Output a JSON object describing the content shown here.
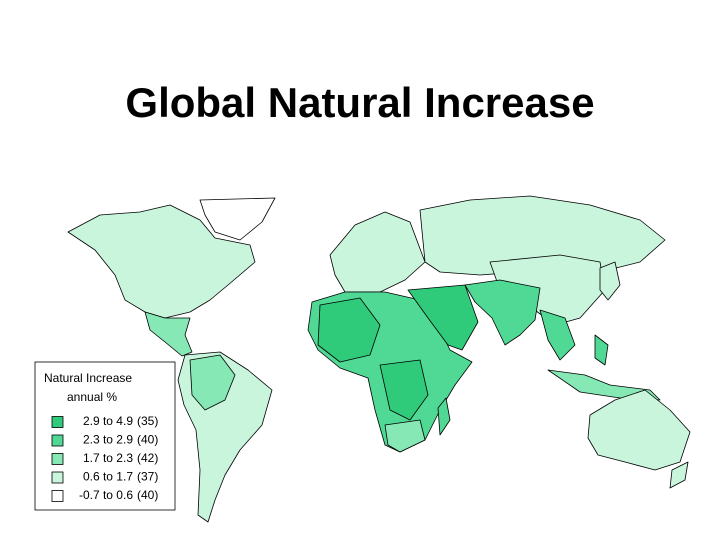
{
  "title": "Global Natural Increase",
  "legend": {
    "title": "Natural Increase",
    "subtitle": "annual %",
    "items": [
      {
        "range": "2.9 to 4.9",
        "count": "(35)",
        "color": "#2fcb7a"
      },
      {
        "range": "2.3 to 2.9",
        "count": "(40)",
        "color": "#4fd994"
      },
      {
        "range": "1.7 to 2.3",
        "count": "(42)",
        "color": "#86e8b5"
      },
      {
        "range": "0.6 to 1.7",
        "count": "(37)",
        "color": "#c8f5dc"
      },
      {
        "range": "-0.7 to 0.6",
        "count": "(40)",
        "color": "#ffffff"
      }
    ]
  }
}
